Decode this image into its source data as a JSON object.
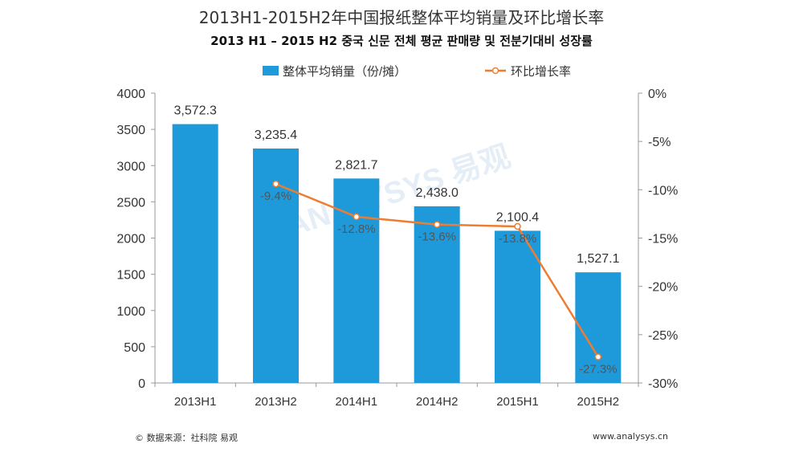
{
  "chart_data": {
    "type": "bar",
    "title": "2013H1-2015H2年中国报纸整体平均销量及环比增长率",
    "subtitle": "2013 H1 – 2015 H2 중국 신문 전체 평균 판매량 및 전분기대비 성장률",
    "categories": [
      "2013H1",
      "2013H2",
      "2014H1",
      "2014H2",
      "2015H1",
      "2015H2"
    ],
    "series": [
      {
        "name": "整体平均销量（份/摊）",
        "kind": "bar",
        "axis": "left",
        "color": "#1E9ADB",
        "values": [
          3572.3,
          3235.4,
          2821.7,
          2438.0,
          2100.4,
          1527.1
        ],
        "labels": [
          "3,572.3",
          "3,235.4",
          "2,821.7",
          "2,438.0",
          "2,100.4",
          "1,527.1"
        ]
      },
      {
        "name": "环比增长率",
        "kind": "line",
        "axis": "right",
        "color": "#ED7D31",
        "values": [
          null,
          -9.4,
          -12.8,
          -13.6,
          -13.8,
          -27.3
        ],
        "labels": [
          "",
          "-9.4%",
          "-12.8%",
          "-13.6%",
          "-13.8%",
          "-27.3%"
        ]
      }
    ],
    "y_left": {
      "ylim": [
        0,
        4000
      ],
      "ticks": [
        0,
        500,
        1000,
        1500,
        2000,
        2500,
        3000,
        3500,
        4000
      ],
      "tick_labels": [
        "0",
        "500",
        "1000",
        "1500",
        "2000",
        "2500",
        "3000",
        "3500",
        "4000"
      ]
    },
    "y_right": {
      "ylim": [
        -30,
        0
      ],
      "ticks": [
        0,
        -5,
        -10,
        -15,
        -20,
        -25,
        -30
      ],
      "tick_labels": [
        "0%",
        "-5%",
        "-10%",
        "-15%",
        "-20%",
        "-25%",
        "-30%"
      ]
    },
    "legend_position": "top",
    "grid": false
  },
  "watermark": "ANALYSYS 易观",
  "footer": {
    "source": "© 数据来源：社科院 易观",
    "website": "www.analysys.cn"
  }
}
